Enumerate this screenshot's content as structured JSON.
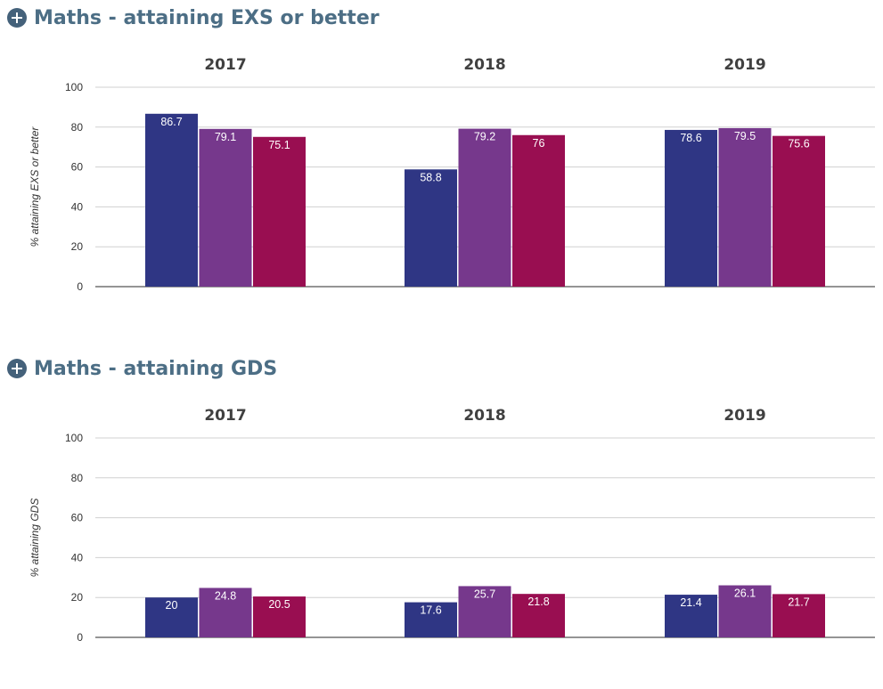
{
  "colors": {
    "series_a": "#2f3684",
    "series_b": "#76388c",
    "series_c": "#990e51",
    "title": "#4c6e85",
    "icon": "#44617a",
    "grid": "#d0d0d0",
    "axis": "#555555"
  },
  "icons": {
    "expand": "plus-circle-icon"
  },
  "sections": [
    {
      "title": "Maths - attaining EXS or better",
      "chart_data": {
        "type": "bar",
        "title": "Maths - attaining EXS or better",
        "ylabel": "% attaining EXS or better",
        "ylim": [
          0,
          100
        ],
        "yticks": [
          "0",
          "20",
          "40",
          "60",
          "80",
          "100"
        ],
        "grid": true,
        "groups": [
          {
            "label": "2017",
            "values": [
              86.7,
              79.1,
              75.1
            ]
          },
          {
            "label": "2018",
            "values": [
              58.8,
              79.2,
              76
            ]
          },
          {
            "label": "2019",
            "values": [
              78.6,
              79.5,
              75.6
            ]
          }
        ]
      }
    },
    {
      "title": "Maths - attaining GDS",
      "chart_data": {
        "type": "bar",
        "title": "Maths - attaining GDS",
        "ylabel": "% attaining GDS",
        "ylim": [
          0,
          100
        ],
        "yticks": [
          "0",
          "20",
          "40",
          "60",
          "80",
          "100"
        ],
        "grid": true,
        "groups": [
          {
            "label": "2017",
            "values": [
              20,
              24.8,
              20.5
            ]
          },
          {
            "label": "2018",
            "values": [
              17.6,
              25.7,
              21.8
            ]
          },
          {
            "label": "2019",
            "values": [
              21.4,
              26.1,
              21.7
            ]
          }
        ]
      }
    }
  ]
}
